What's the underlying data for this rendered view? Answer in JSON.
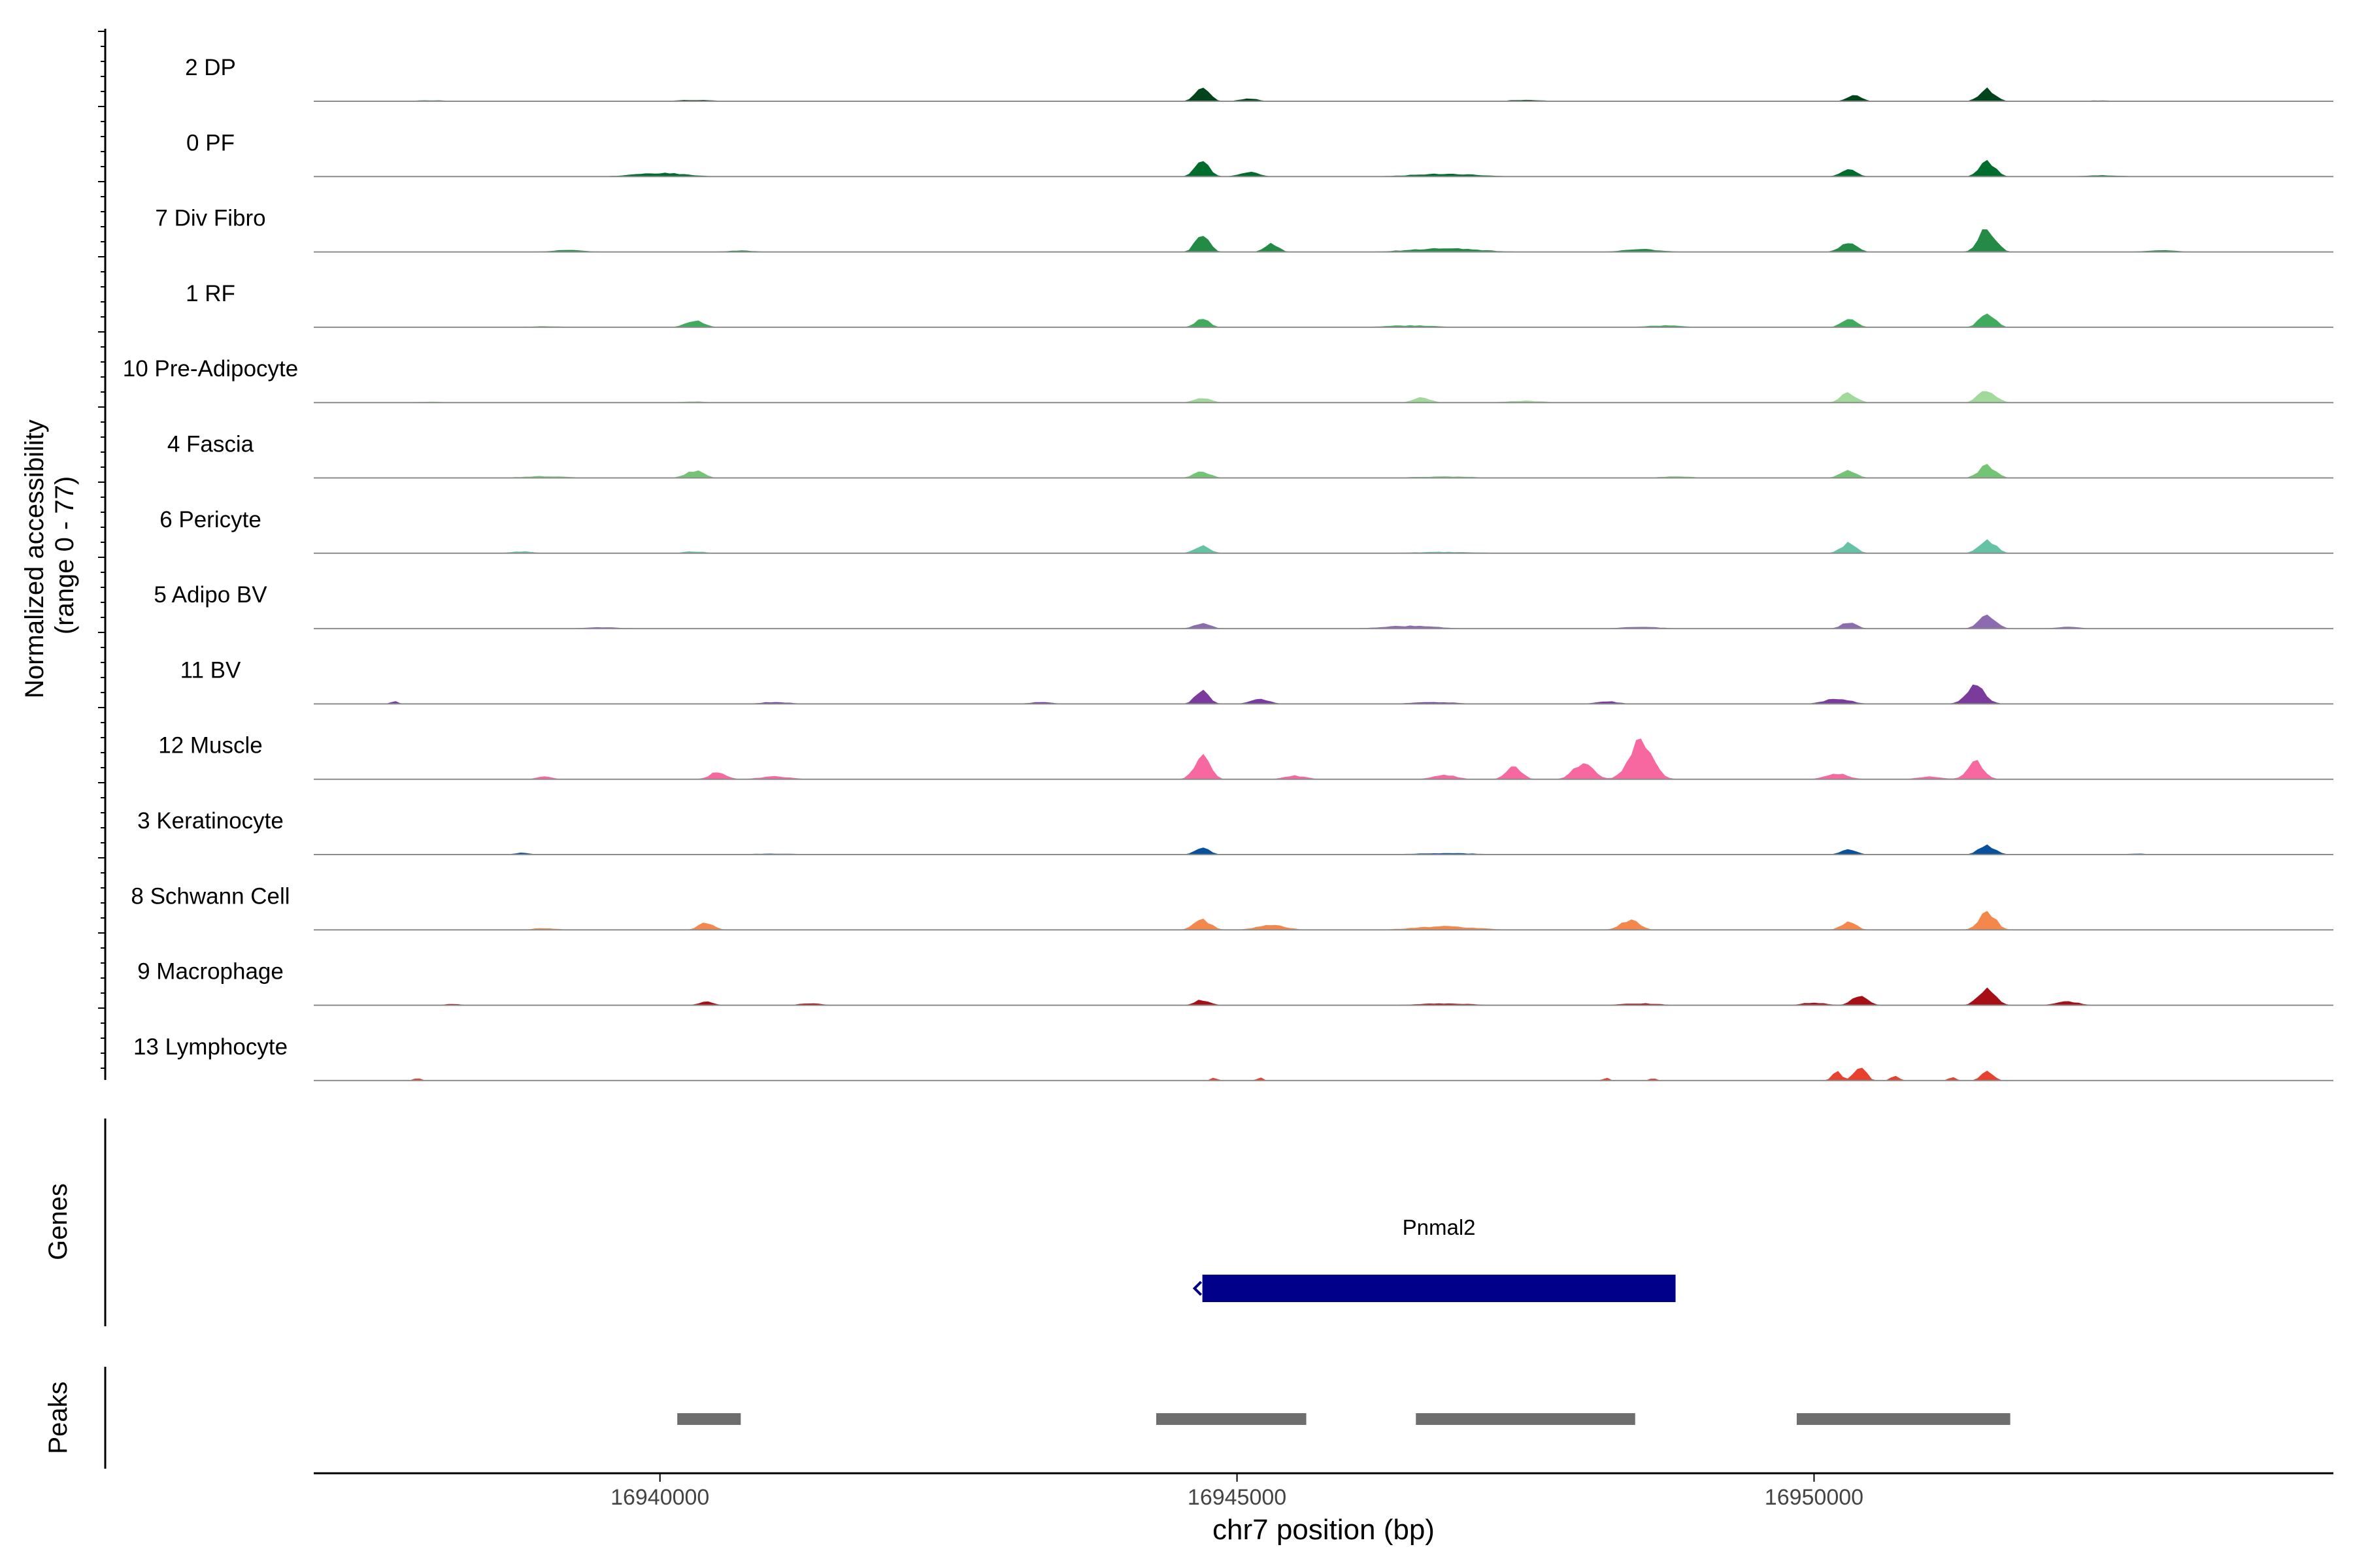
{
  "chart_data": {
    "type": "area",
    "xlabel": "chr7 position (bp)",
    "ylabel": [
      "Normalized accessibility",
      "(range 0 - 77)"
    ],
    "xlim": [
      16937000,
      16954500
    ],
    "ylim": [
      0,
      77
    ],
    "x_ticks": [
      16940000,
      16945000,
      16950000
    ],
    "x_tick_labels": [
      "16940000",
      "16945000",
      "16950000"
    ],
    "tracks": [
      {
        "name": "2 DP",
        "color": "#00441b",
        "peaks": [
          [
            16938000,
            1,
            700
          ],
          [
            16940300,
            1.5,
            500
          ],
          [
            16944700,
            18,
            180
          ],
          [
            16945100,
            3,
            250
          ],
          [
            16947500,
            1.5,
            500
          ],
          [
            16950350,
            8,
            180
          ],
          [
            16951500,
            14,
            200
          ],
          [
            16952500,
            1,
            400
          ]
        ]
      },
      {
        "name": "0 PF",
        "color": "#006d2c",
        "peaks": [
          [
            16940000,
            4,
            700
          ],
          [
            16944700,
            20,
            180
          ],
          [
            16945100,
            5,
            260
          ],
          [
            16946800,
            3,
            900
          ],
          [
            16950300,
            9,
            200
          ],
          [
            16951500,
            18,
            200
          ],
          [
            16952500,
            1.5,
            500
          ]
        ]
      },
      {
        "name": "7 Div Fibro",
        "color": "#238b45",
        "peaks": [
          [
            16939200,
            2,
            500
          ],
          [
            16940700,
            1.5,
            400
          ],
          [
            16944700,
            20,
            180
          ],
          [
            16945300,
            9,
            180
          ],
          [
            16946800,
            4,
            900
          ],
          [
            16948500,
            3,
            500
          ],
          [
            16950300,
            10,
            220
          ],
          [
            16951500,
            26,
            220
          ],
          [
            16953000,
            2,
            400
          ]
        ]
      },
      {
        "name": "1 RF",
        "color": "#41ab5d",
        "peaks": [
          [
            16939000,
            1,
            600
          ],
          [
            16940300,
            8,
            240
          ],
          [
            16944700,
            10,
            180
          ],
          [
            16946500,
            2,
            700
          ],
          [
            16948700,
            2,
            500
          ],
          [
            16950300,
            9,
            200
          ],
          [
            16951500,
            17,
            200
          ]
        ]
      },
      {
        "name": "10 Pre-Adipocyte",
        "color": "#a1d99b",
        "peaks": [
          [
            16938000,
            1,
            400
          ],
          [
            16940300,
            1.5,
            300
          ],
          [
            16944700,
            5,
            220
          ],
          [
            16946600,
            6,
            220
          ],
          [
            16947500,
            2,
            500
          ],
          [
            16950300,
            11,
            200
          ],
          [
            16951500,
            15,
            220
          ]
        ]
      },
      {
        "name": "4 Fascia",
        "color": "#74c476",
        "peaks": [
          [
            16939000,
            2,
            600
          ],
          [
            16940300,
            8,
            240
          ],
          [
            16944700,
            7,
            220
          ],
          [
            16946800,
            1.5,
            900
          ],
          [
            16948800,
            1.5,
            500
          ],
          [
            16950300,
            8,
            220
          ],
          [
            16951500,
            14,
            220
          ]
        ]
      },
      {
        "name": "6 Pericyte",
        "color": "#66c2a4",
        "peaks": [
          [
            16938800,
            2,
            300
          ],
          [
            16940300,
            2,
            300
          ],
          [
            16944700,
            9,
            200
          ],
          [
            16946800,
            1.5,
            900
          ],
          [
            16950300,
            11,
            200
          ],
          [
            16951500,
            15,
            220
          ]
        ]
      },
      {
        "name": "5 Adipo BV",
        "color": "#8c6bb1",
        "peaks": [
          [
            16939500,
            1.5,
            500
          ],
          [
            16944700,
            6,
            220
          ],
          [
            16946500,
            3,
            700
          ],
          [
            16948500,
            2,
            500
          ],
          [
            16950300,
            7,
            200
          ],
          [
            16951500,
            16,
            220
          ],
          [
            16952200,
            2,
            300
          ]
        ]
      },
      {
        "name": "11 BV",
        "color": "#7a3b9c",
        "peaks": [
          [
            16937700,
            3,
            100
          ],
          [
            16941000,
            2,
            400
          ],
          [
            16943300,
            2,
            300
          ],
          [
            16944700,
            15,
            180
          ],
          [
            16945200,
            5,
            250
          ],
          [
            16946700,
            2,
            600
          ],
          [
            16948200,
            3,
            300
          ],
          [
            16950200,
            6,
            350
          ],
          [
            16951400,
            20,
            250
          ]
        ]
      },
      {
        "name": "12 Muscle",
        "color": "#f768a1",
        "peaks": [
          [
            16939000,
            3,
            200
          ],
          [
            16940500,
            8,
            220
          ],
          [
            16941000,
            3,
            400
          ],
          [
            16944700,
            26,
            200
          ],
          [
            16945500,
            4,
            300
          ],
          [
            16946800,
            5,
            300
          ],
          [
            16947400,
            14,
            200
          ],
          [
            16948000,
            18,
            250
          ],
          [
            16948500,
            46,
            300
          ],
          [
            16950200,
            6,
            300
          ],
          [
            16951400,
            20,
            220
          ],
          [
            16951000,
            3,
            300
          ]
        ]
      },
      {
        "name": "3 Keratinocyte",
        "color": "#08519c",
        "peaks": [
          [
            16938800,
            2,
            200
          ],
          [
            16941000,
            1,
            700
          ],
          [
            16944700,
            7,
            200
          ],
          [
            16946800,
            1.5,
            900
          ],
          [
            16950300,
            6,
            200
          ],
          [
            16951500,
            10,
            220
          ],
          [
            16952800,
            1,
            500
          ]
        ]
      },
      {
        "name": "8 Schwann Cell",
        "color": "#f4874b",
        "peaks": [
          [
            16939000,
            2,
            300
          ],
          [
            16940400,
            8,
            200
          ],
          [
            16944700,
            11,
            220
          ],
          [
            16945300,
            5,
            400
          ],
          [
            16946800,
            4,
            800
          ],
          [
            16948400,
            11,
            250
          ],
          [
            16950300,
            9,
            200
          ],
          [
            16951500,
            20,
            220
          ]
        ]
      },
      {
        "name": "9 Macrophage",
        "color": "#a50f15",
        "peaks": [
          [
            16938200,
            1.5,
            200
          ],
          [
            16940400,
            4,
            200
          ],
          [
            16941300,
            2,
            300
          ],
          [
            16944700,
            6,
            200
          ],
          [
            16946800,
            2,
            700
          ],
          [
            16948500,
            2,
            500
          ],
          [
            16950000,
            3,
            300
          ],
          [
            16950400,
            12,
            200
          ],
          [
            16951500,
            20,
            220
          ],
          [
            16952200,
            4,
            300
          ]
        ]
      },
      {
        "name": "13 Lymphocyte",
        "color": "#e8412d",
        "peaks": [
          [
            16937900,
            3,
            100
          ],
          [
            16944800,
            4,
            80
          ],
          [
            16945200,
            3,
            80
          ],
          [
            16948200,
            3,
            80
          ],
          [
            16948600,
            3,
            80
          ],
          [
            16950200,
            10,
            120
          ],
          [
            16950400,
            16,
            150
          ],
          [
            16950700,
            6,
            100
          ],
          [
            16951200,
            4,
            100
          ],
          [
            16951500,
            12,
            150
          ]
        ]
      }
    ],
    "genes": [
      {
        "name": "Pnmal2",
        "start": 16944700,
        "end": 16948800,
        "strand": "-",
        "color": "#00008b"
      }
    ],
    "peaks": [
      {
        "start": 16940150,
        "end": 16940700
      },
      {
        "start": 16944300,
        "end": 16945600
      },
      {
        "start": 16946550,
        "end": 16948450
      },
      {
        "start": 16949850,
        "end": 16951700
      }
    ],
    "panels": {
      "genes_label": "Genes",
      "peaks_label": "Peaks"
    }
  }
}
